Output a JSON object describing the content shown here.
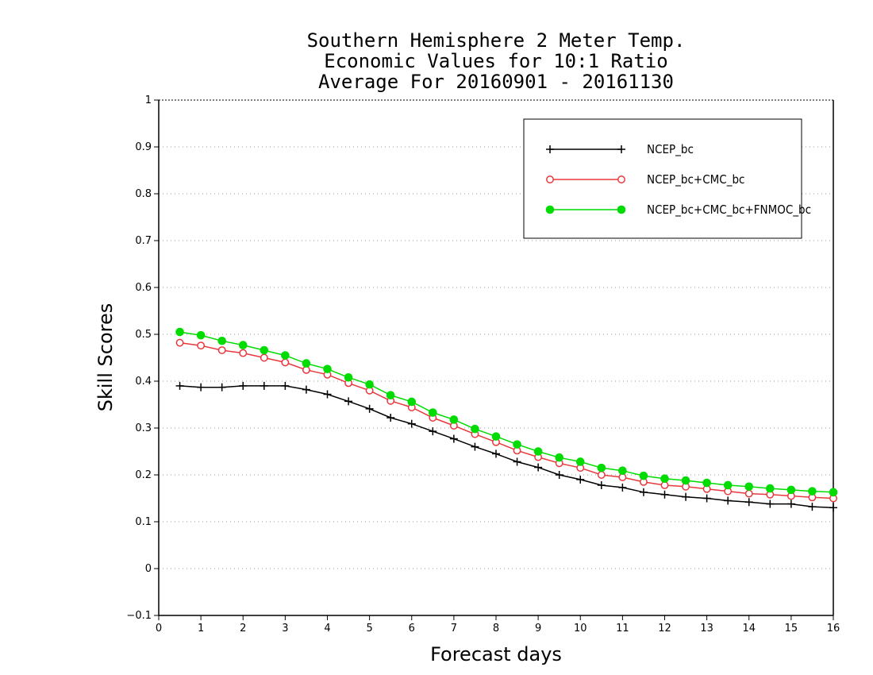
{
  "chart_data": {
    "type": "line",
    "title_lines": [
      "Southern Hemisphere 2 Meter Temp.",
      "Economic Values for 10:1 Ratio",
      "Average For 20160901 - 20161130"
    ],
    "xlabel": "Forecast days",
    "ylabel": "Skill Scores",
    "xlim": [
      0,
      16
    ],
    "ylim": [
      -0.1,
      1
    ],
    "x_ticks": [
      0,
      1,
      2,
      3,
      4,
      5,
      6,
      7,
      8,
      9,
      10,
      11,
      12,
      13,
      14,
      15,
      16
    ],
    "y_ticks": [
      -0.1,
      0,
      0.1,
      0.2,
      0.3,
      0.4,
      0.5,
      0.6,
      0.7,
      0.8,
      0.9,
      1
    ],
    "y_tick_labels": [
      "−0.1",
      "0",
      "0.1",
      "0.2",
      "0.3",
      "0.4",
      "0.5",
      "0.6",
      "0.7",
      "0.8",
      "0.9",
      "1"
    ],
    "grid": "horizontal-dotted",
    "legend_position": "top-right",
    "x": [
      0.5,
      1,
      1.5,
      2,
      2.5,
      3,
      3.5,
      4,
      4.5,
      5,
      5.5,
      6,
      6.5,
      7,
      7.5,
      8,
      8.5,
      9,
      9.5,
      10,
      10.5,
      11,
      11.5,
      12,
      12.5,
      13,
      13.5,
      14,
      14.5,
      15,
      15.5,
      16
    ],
    "series": [
      {
        "name": "NCEP_bc",
        "color": "#000000",
        "marker": "plus",
        "values": [
          0.39,
          0.387,
          0.387,
          0.39,
          0.39,
          0.39,
          0.382,
          0.372,
          0.357,
          0.341,
          0.322,
          0.309,
          0.293,
          0.277,
          0.26,
          0.245,
          0.228,
          0.216,
          0.2,
          0.19,
          0.178,
          0.173,
          0.163,
          0.158,
          0.153,
          0.15,
          0.145,
          0.142,
          0.138,
          0.138,
          0.132,
          0.13
        ]
      },
      {
        "name": "NCEP_bc+CMC_bc",
        "color": "#e8383d",
        "marker": "open-circle",
        "values": [
          0.482,
          0.476,
          0.466,
          0.46,
          0.45,
          0.44,
          0.424,
          0.414,
          0.396,
          0.38,
          0.358,
          0.344,
          0.322,
          0.305,
          0.287,
          0.27,
          0.252,
          0.238,
          0.225,
          0.215,
          0.2,
          0.195,
          0.185,
          0.178,
          0.175,
          0.17,
          0.165,
          0.16,
          0.158,
          0.155,
          0.152,
          0.15
        ]
      },
      {
        "name": "NCEP_bc+CMC_bc+FNMOC_bc",
        "color": "#00dc00",
        "marker": "filled-circle",
        "values": [
          0.505,
          0.498,
          0.486,
          0.477,
          0.466,
          0.455,
          0.438,
          0.426,
          0.408,
          0.393,
          0.37,
          0.356,
          0.333,
          0.318,
          0.298,
          0.282,
          0.265,
          0.25,
          0.237,
          0.228,
          0.215,
          0.209,
          0.198,
          0.192,
          0.188,
          0.183,
          0.178,
          0.175,
          0.171,
          0.168,
          0.165,
          0.163
        ]
      }
    ]
  }
}
